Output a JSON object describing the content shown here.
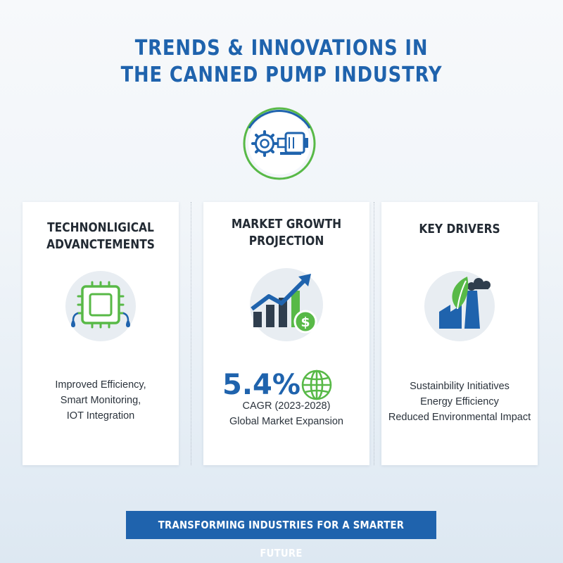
{
  "header": {
    "title_line1": "TRENDS & INNOVATIONS IN",
    "title_line2": "THE CANNED PUMP INDUSTRY",
    "icon": "gear-pump-icon"
  },
  "cards": [
    {
      "title_line1": "TECHNONLIGICAL",
      "title_line2": "ADVANCTEMENTS",
      "icon": "microchip-icon",
      "lines": [
        "Improved Efficiency,",
        "Smart Monitoring,",
        "IOT Integration"
      ]
    },
    {
      "title_line1": "MARKET GROWTH",
      "title_line2": "PROJECTION",
      "icon": "growth-chart-icon",
      "stat": "5.4%",
      "stat_icon": "globe-icon",
      "lines": [
        "CAGR (2023-2028)",
        "Global Market Expansion"
      ]
    },
    {
      "title_line1": "KEY DRIVERS",
      "icon": "factory-leaf-icon",
      "lines": [
        "Sustainbility Initiatives",
        "Energy Efficiency",
        "Reduced Environmental Impact"
      ]
    }
  ],
  "footer": {
    "banner": "TRANSFORMING INDUSTRIES FOR A SMARTER FUTURE"
  },
  "colors": {
    "brand_blue": "#1f63ad",
    "green": "#58b947",
    "dark_text": "#222a33",
    "icon_bg": "#e8edf2"
  }
}
